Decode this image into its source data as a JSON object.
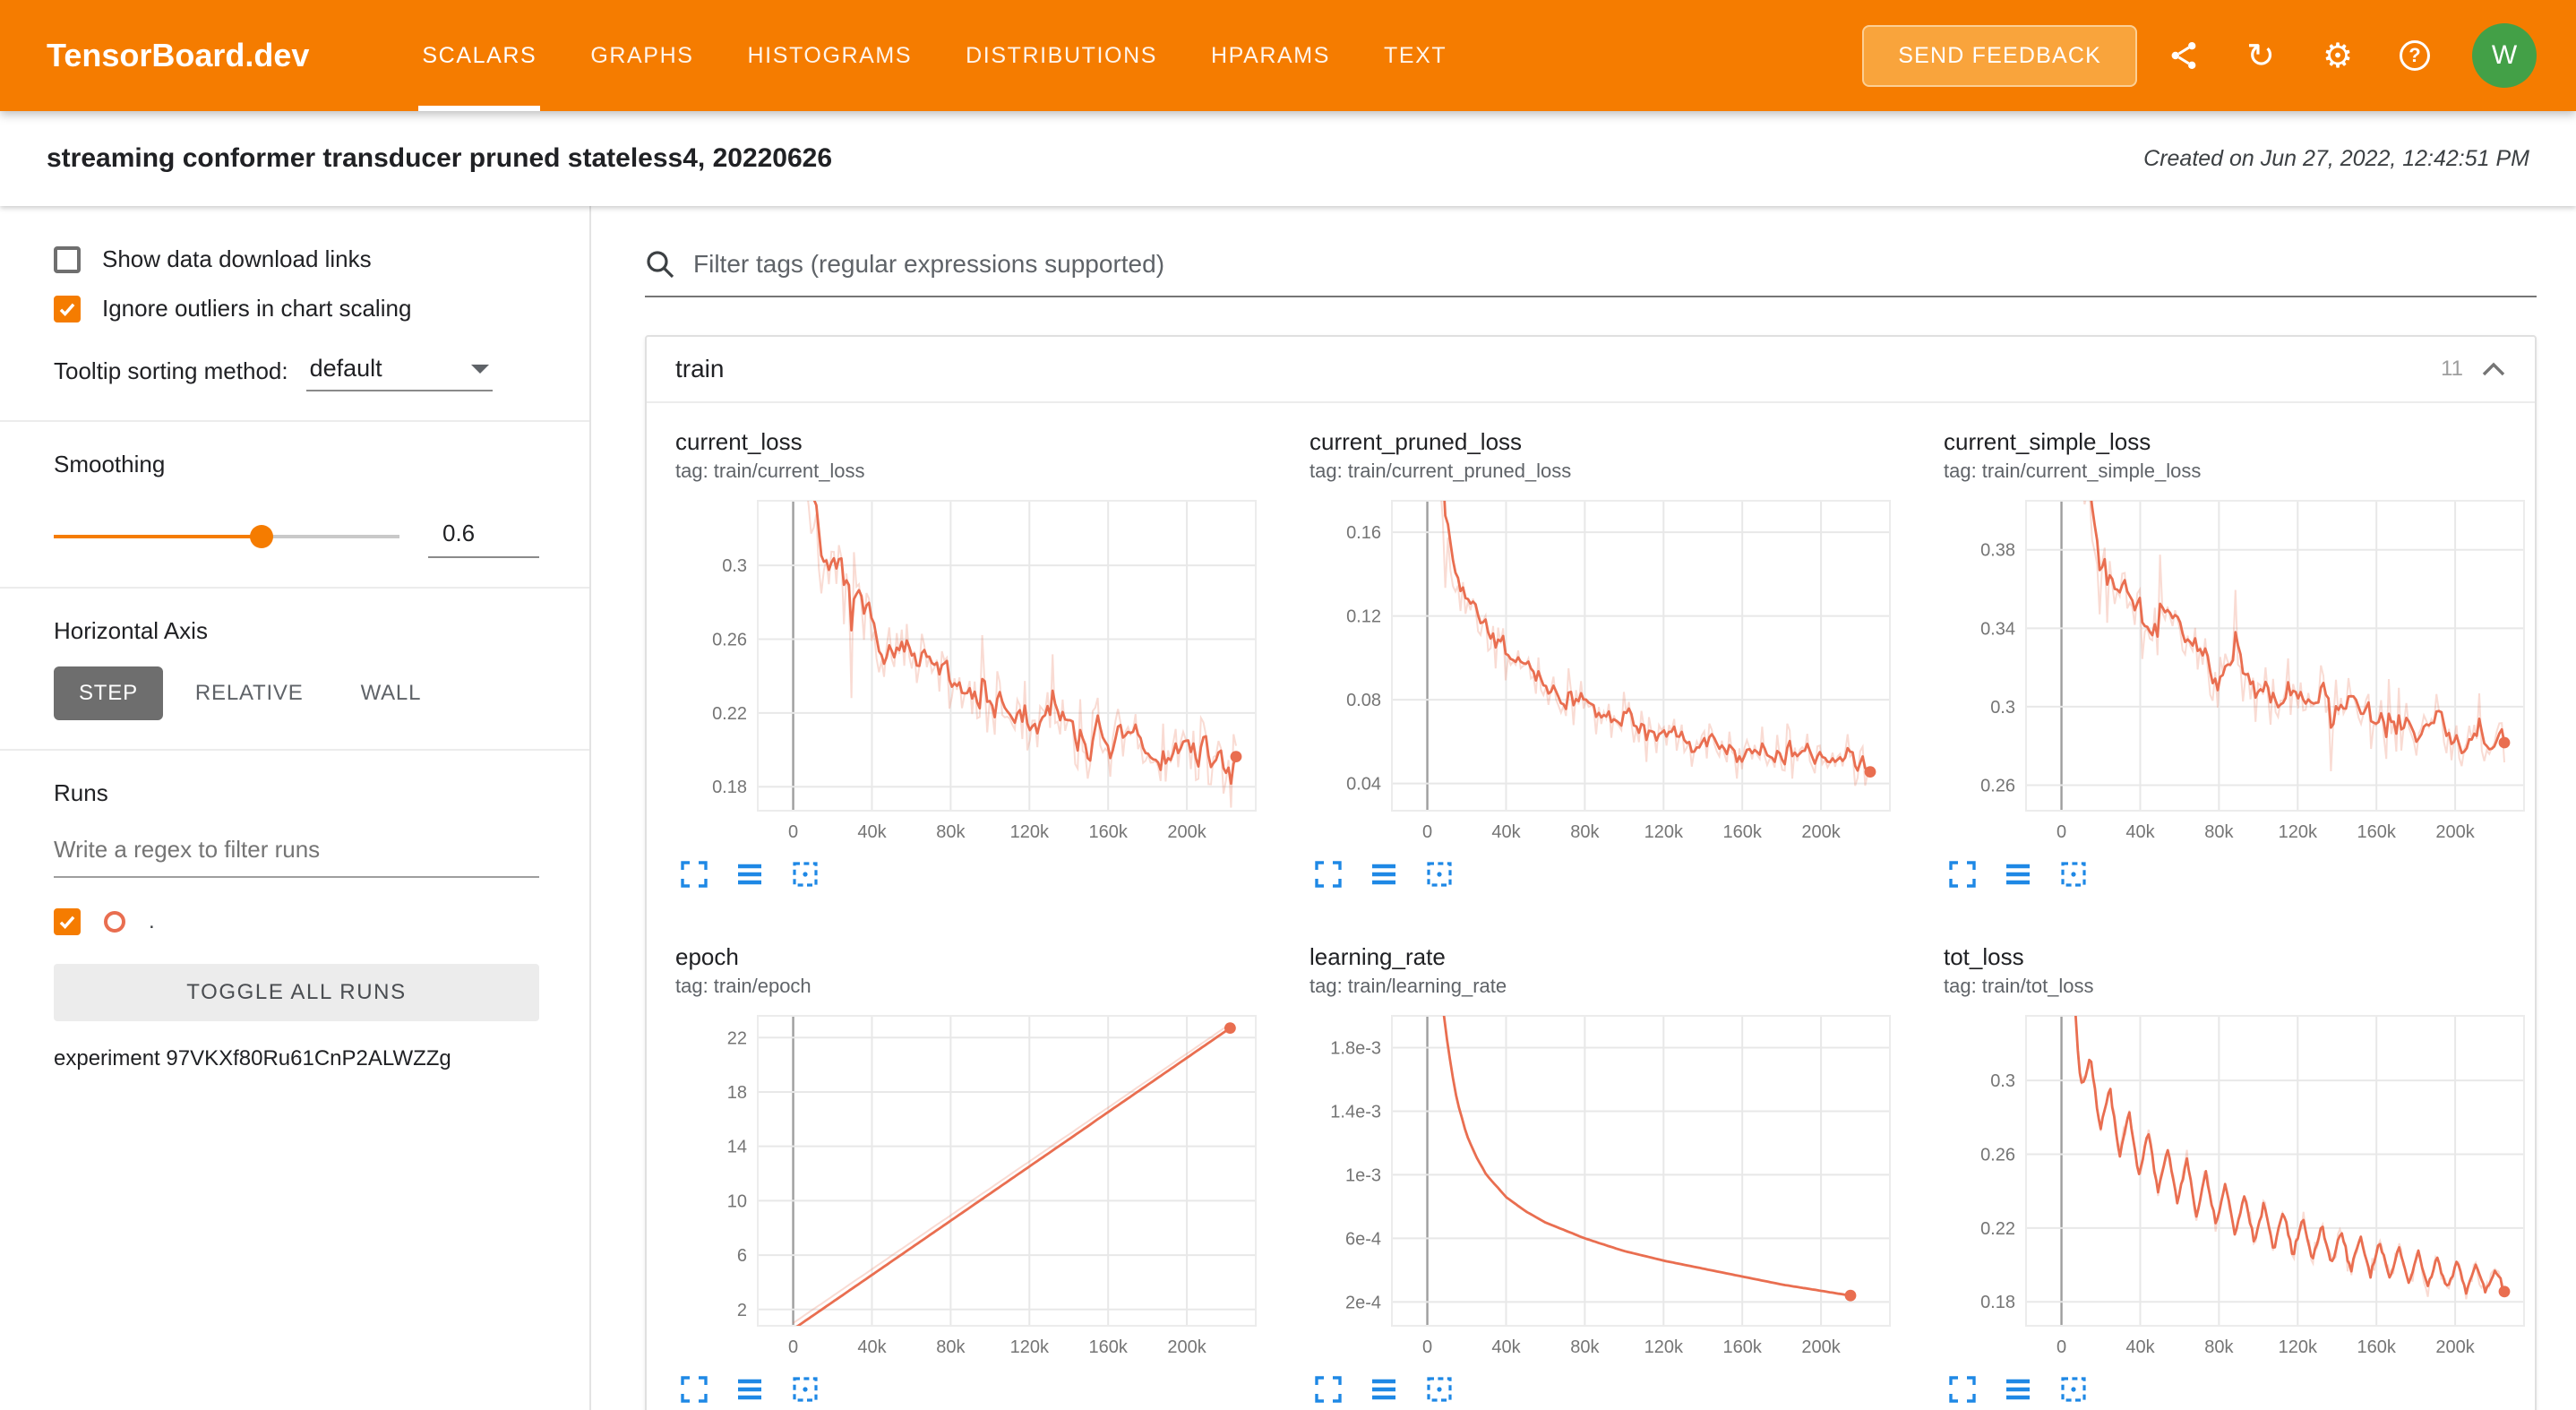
{
  "colors": {
    "brand": "#f57c00",
    "run": "#e96e50",
    "action_blue": "#1e88e5",
    "avatar_green": "#43a047"
  },
  "header": {
    "logo": "TensorBoard.dev",
    "nav": [
      {
        "label": "SCALARS",
        "active": true
      },
      {
        "label": "GRAPHS",
        "active": false
      },
      {
        "label": "HISTOGRAMS",
        "active": false
      },
      {
        "label": "DISTRIBUTIONS",
        "active": false
      },
      {
        "label": "HPARAMS",
        "active": false
      },
      {
        "label": "TEXT",
        "active": false
      }
    ],
    "feedback_label": "SEND FEEDBACK",
    "icons": [
      "share-icon",
      "refresh-icon",
      "settings-gear-icon",
      "help-icon"
    ],
    "avatar": "W",
    "help_mark": "?",
    "refresh_glyph": "↻",
    "gear_glyph": "⚙"
  },
  "subheader": {
    "title": "streaming conformer transducer pruned stateless4, 20220626",
    "created": "Created on Jun 27, 2022, 12:42:51 PM"
  },
  "sidebar": {
    "checkboxes": [
      {
        "label": "Show data download links",
        "checked": false
      },
      {
        "label": "Ignore outliers in chart scaling",
        "checked": true
      }
    ],
    "tooltip_sorting": {
      "label": "Tooltip sorting method:",
      "value": "default"
    },
    "smoothing": {
      "label": "Smoothing",
      "value": "0.6",
      "fraction": 0.6
    },
    "horizontal_axis": {
      "label": "Horizontal Axis",
      "options": [
        {
          "label": "STEP",
          "active": true
        },
        {
          "label": "RELATIVE",
          "active": false
        },
        {
          "label": "WALL",
          "active": false
        }
      ]
    },
    "runs": {
      "label": "Runs",
      "filter_placeholder": "Write a regex to filter runs",
      "run_item": {
        "name": ".",
        "checked": true
      },
      "toggle_all": "TOGGLE ALL RUNS",
      "experiment": "experiment 97VKXf80Ru61CnP2ALWZZg"
    }
  },
  "main": {
    "filter_placeholder": "Filter tags (regular expressions supported)",
    "group": {
      "name": "train",
      "count": "11"
    }
  },
  "chart_data": [
    {
      "type": "line",
      "title": "current_loss",
      "tag": "tag: train/current_loss",
      "style": "noisy",
      "seed": 7,
      "smoothing": 0.6,
      "noise_raw": 0.018,
      "end_dot": true,
      "x_domain": [
        -18000,
        235000
      ],
      "x_ticks": [
        0,
        40000,
        80000,
        120000,
        160000,
        200000
      ],
      "x_tick_labels": [
        "0",
        "40k",
        "80k",
        "120k",
        "160k",
        "200k"
      ],
      "y_min": 0.167,
      "y_max": 0.335,
      "y_ticks": [
        0.18,
        0.22,
        0.26,
        0.3
      ],
      "y_tick_labels": [
        "0.18",
        "0.22",
        "0.26",
        "0.3"
      ],
      "trend": [
        [
          1500,
          0.52
        ],
        [
          3000,
          0.43
        ],
        [
          5000,
          0.37
        ],
        [
          8000,
          0.335
        ],
        [
          12000,
          0.31
        ],
        [
          20000,
          0.292
        ],
        [
          30000,
          0.274
        ],
        [
          40000,
          0.263
        ],
        [
          50000,
          0.254
        ],
        [
          60000,
          0.247
        ],
        [
          80000,
          0.234
        ],
        [
          100000,
          0.224
        ],
        [
          120000,
          0.216
        ],
        [
          140000,
          0.21
        ],
        [
          160000,
          0.205
        ],
        [
          180000,
          0.2
        ],
        [
          200000,
          0.196
        ],
        [
          225000,
          0.192
        ]
      ]
    },
    {
      "type": "line",
      "title": "current_pruned_loss",
      "tag": "tag: train/current_pruned_loss",
      "style": "noisy",
      "seed": 13,
      "smoothing": 0.6,
      "noise_raw": 0.011,
      "end_dot": true,
      "x_domain": [
        -18000,
        235000
      ],
      "x_ticks": [
        0,
        40000,
        80000,
        120000,
        160000,
        200000
      ],
      "x_tick_labels": [
        "0",
        "40k",
        "80k",
        "120k",
        "160k",
        "200k"
      ],
      "y_min": 0.027,
      "y_max": 0.175,
      "y_ticks": [
        0.04,
        0.08,
        0.12,
        0.16
      ],
      "y_tick_labels": [
        "0.04",
        "0.08",
        "0.12",
        "0.16"
      ],
      "trend": [
        [
          1500,
          0.3
        ],
        [
          3000,
          0.24
        ],
        [
          5000,
          0.2
        ],
        [
          8000,
          0.17
        ],
        [
          12000,
          0.148
        ],
        [
          20000,
          0.126
        ],
        [
          30000,
          0.111
        ],
        [
          40000,
          0.1
        ],
        [
          50000,
          0.092
        ],
        [
          60000,
          0.086
        ],
        [
          80000,
          0.0765
        ],
        [
          100000,
          0.0695
        ],
        [
          120000,
          0.064
        ],
        [
          140000,
          0.0595
        ],
        [
          160000,
          0.056
        ],
        [
          180000,
          0.0535
        ],
        [
          200000,
          0.051
        ],
        [
          225000,
          0.048
        ]
      ]
    },
    {
      "type": "line",
      "title": "current_simple_loss",
      "tag": "tag: train/current_simple_loss",
      "style": "noisy",
      "seed": 21,
      "smoothing": 0.6,
      "noise_raw": 0.018,
      "end_dot": true,
      "x_domain": [
        -18000,
        235000
      ],
      "x_ticks": [
        0,
        40000,
        80000,
        120000,
        160000,
        200000
      ],
      "x_tick_labels": [
        "0",
        "40k",
        "80k",
        "120k",
        "160k",
        "200k"
      ],
      "y_min": 0.247,
      "y_max": 0.405,
      "y_ticks": [
        0.26,
        0.3,
        0.34,
        0.38
      ],
      "y_tick_labels": [
        "0.26",
        "0.3",
        "0.34",
        "0.38"
      ],
      "trend": [
        [
          1500,
          0.6
        ],
        [
          3000,
          0.52
        ],
        [
          5000,
          0.47
        ],
        [
          8000,
          0.43
        ],
        [
          12000,
          0.405
        ],
        [
          20000,
          0.372
        ],
        [
          30000,
          0.356
        ],
        [
          40000,
          0.346
        ],
        [
          50000,
          0.339
        ],
        [
          60000,
          0.333
        ],
        [
          80000,
          0.322
        ],
        [
          100000,
          0.313
        ],
        [
          120000,
          0.306
        ],
        [
          140000,
          0.3
        ],
        [
          160000,
          0.294
        ],
        [
          180000,
          0.289
        ],
        [
          200000,
          0.285
        ],
        [
          225000,
          0.28
        ]
      ]
    },
    {
      "type": "line",
      "title": "epoch",
      "tag": "tag: train/epoch",
      "style": "plain",
      "seed": 3,
      "end_dot": true,
      "x_domain": [
        -18000,
        235000
      ],
      "x_ticks": [
        0,
        40000,
        80000,
        120000,
        160000,
        200000
      ],
      "x_tick_labels": [
        "0",
        "40k",
        "80k",
        "120k",
        "160k",
        "200k"
      ],
      "y_min": 0.8,
      "y_max": 23.6,
      "y_ticks": [
        2,
        6,
        10,
        14,
        18,
        22
      ],
      "y_tick_labels": [
        "2",
        "6",
        "10",
        "14",
        "18",
        "22"
      ],
      "raw_points": [
        [
          0,
          1
        ],
        [
          222000,
          23
        ]
      ],
      "smooth_points": [
        [
          0,
          0.55
        ],
        [
          222000,
          22.7
        ]
      ]
    },
    {
      "type": "line",
      "title": "learning_rate",
      "tag": "tag: train/learning_rate",
      "style": "plain",
      "seed": 5,
      "end_dot": true,
      "x_domain": [
        -18000,
        235000
      ],
      "x_ticks": [
        0,
        40000,
        80000,
        120000,
        160000,
        200000
      ],
      "x_tick_labels": [
        "0",
        "40k",
        "80k",
        "120k",
        "160k",
        "200k"
      ],
      "y_min": 5e-05,
      "y_max": 0.002,
      "y_ticks": [
        0.0002,
        0.0006,
        0.001,
        0.0014,
        0.0018
      ],
      "y_tick_labels": [
        "2e-4",
        "6e-4",
        "1e-3",
        "1.4e-3",
        "1.8e-3"
      ],
      "raw_points": [
        [
          4000,
          0.0026
        ],
        [
          6000,
          0.0023
        ],
        [
          8000,
          0.00205
        ],
        [
          10000,
          0.00185
        ],
        [
          12000,
          0.00168
        ],
        [
          15000,
          0.00147
        ],
        [
          20000,
          0.00125
        ],
        [
          25000,
          0.00111
        ],
        [
          30000,
          0.001
        ],
        [
          40000,
          0.00086
        ],
        [
          50000,
          0.00077
        ],
        [
          60000,
          0.0007
        ],
        [
          80000,
          0.0006
        ],
        [
          100000,
          0.00052
        ],
        [
          120000,
          0.00046
        ],
        [
          140000,
          0.00041
        ],
        [
          160000,
          0.00036
        ],
        [
          180000,
          0.00031
        ],
        [
          200000,
          0.00027
        ],
        [
          215000,
          0.00024
        ]
      ],
      "smooth_points": null
    },
    {
      "type": "line",
      "title": "tot_loss",
      "tag": "tag: train/tot_loss",
      "style": "saw",
      "seed": 29,
      "noise": 0.0015,
      "raw_extra": 0.004,
      "end_dot": true,
      "saw": {
        "period": 9800,
        "amp_start": 0.016,
        "amp_end": 0.007,
        "amp_x0": 12000
      },
      "x_domain": [
        -18000,
        235000
      ],
      "x_ticks": [
        0,
        40000,
        80000,
        120000,
        160000,
        200000
      ],
      "x_tick_labels": [
        "0",
        "40k",
        "80k",
        "120k",
        "160k",
        "200k"
      ],
      "y_min": 0.167,
      "y_max": 0.335,
      "y_ticks": [
        0.18,
        0.22,
        0.26,
        0.3
      ],
      "y_tick_labels": [
        "0.18",
        "0.22",
        "0.26",
        "0.3"
      ],
      "trend": [
        [
          1500,
          0.55
        ],
        [
          3000,
          0.42
        ],
        [
          5000,
          0.36
        ],
        [
          8000,
          0.325
        ],
        [
          12000,
          0.302
        ],
        [
          20000,
          0.288
        ],
        [
          30000,
          0.273
        ],
        [
          40000,
          0.262
        ],
        [
          50000,
          0.253
        ],
        [
          60000,
          0.246
        ],
        [
          80000,
          0.233
        ],
        [
          100000,
          0.223
        ],
        [
          120000,
          0.215
        ],
        [
          140000,
          0.209
        ],
        [
          160000,
          0.203
        ],
        [
          180000,
          0.198
        ],
        [
          200000,
          0.194
        ],
        [
          225000,
          0.191
        ]
      ]
    }
  ]
}
